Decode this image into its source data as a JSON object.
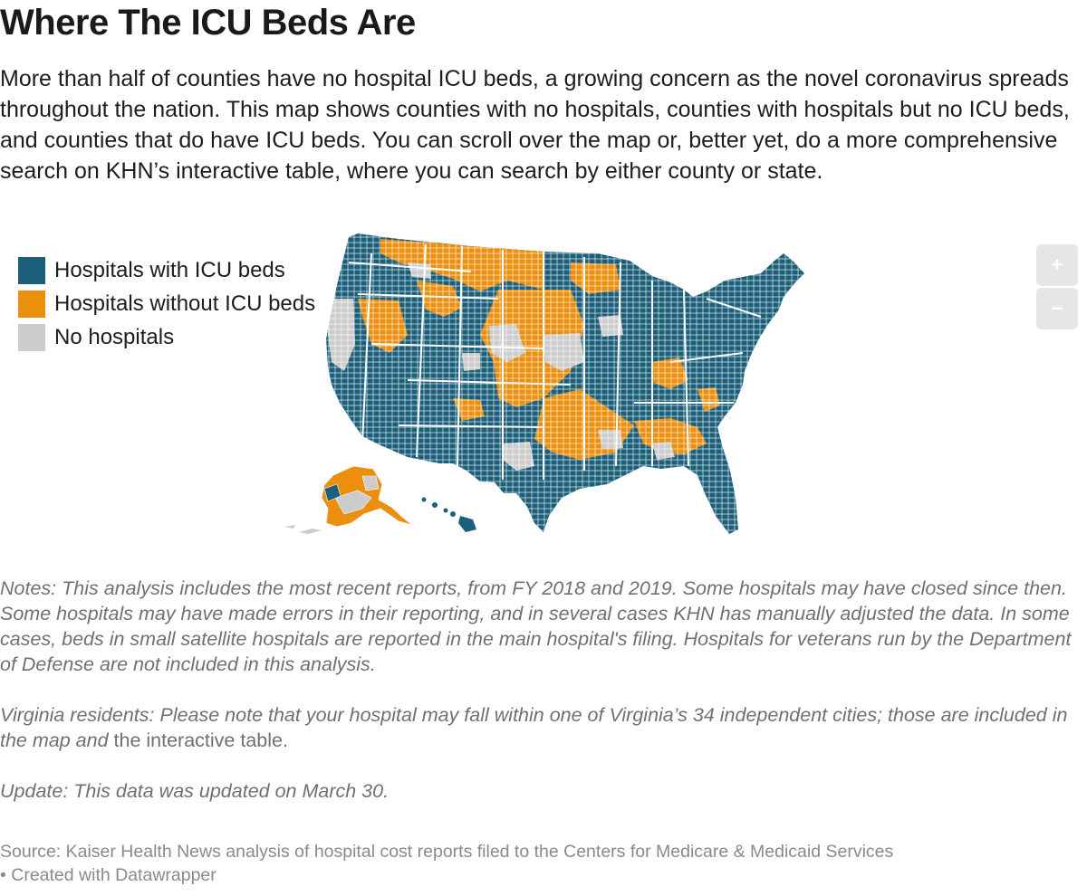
{
  "title": "Where The ICU Beds Are",
  "intro": "More than half of counties have no hospital ICU beds, a growing concern as the novel coronavirus spreads throughout the nation. This map shows counties with no hospitals, counties with hospitals but no ICU beds, and counties that do have ICU beds. You can scroll over the map or, better yet, do a more comprehensive search on KHN’s interactive table, where you can search by either county or state.",
  "legend": [
    {
      "label": "Hospitals with ICU beds",
      "color": "#1b5f7b"
    },
    {
      "label": "Hospitals without ICU beds",
      "color": "#ec8f0e"
    },
    {
      "label": "No hospitals",
      "color": "#cccccc"
    }
  ],
  "zoom": {
    "in_label": "+",
    "out_label": "−"
  },
  "notes": {
    "p1": "Notes: This analysis includes the most recent reports, from FY 2018 and 2019. Some hospitals may have closed since then. Some hospitals may have made errors in their reporting, and in several cases KHN has manually adjusted the data. In some cases, beds in small satellite hospitals are reported in the main hospital's filing. Hospitals for veterans run by the Department of Defense are not included in this analysis.",
    "p2_italic": "Virginia residents: Please note that your hospital may fall within one of Virginia’s 34 independent cities; those are included in the map and ",
    "p2_plain": "the interactive table.",
    "p3": "Update: This data was updated on March 30."
  },
  "source": {
    "line1": "Source: Kaiser Health News analysis of hospital cost reports filed to the Centers for Medicare & Medicaid Services",
    "line2": "• Created with Datawrapper"
  }
}
